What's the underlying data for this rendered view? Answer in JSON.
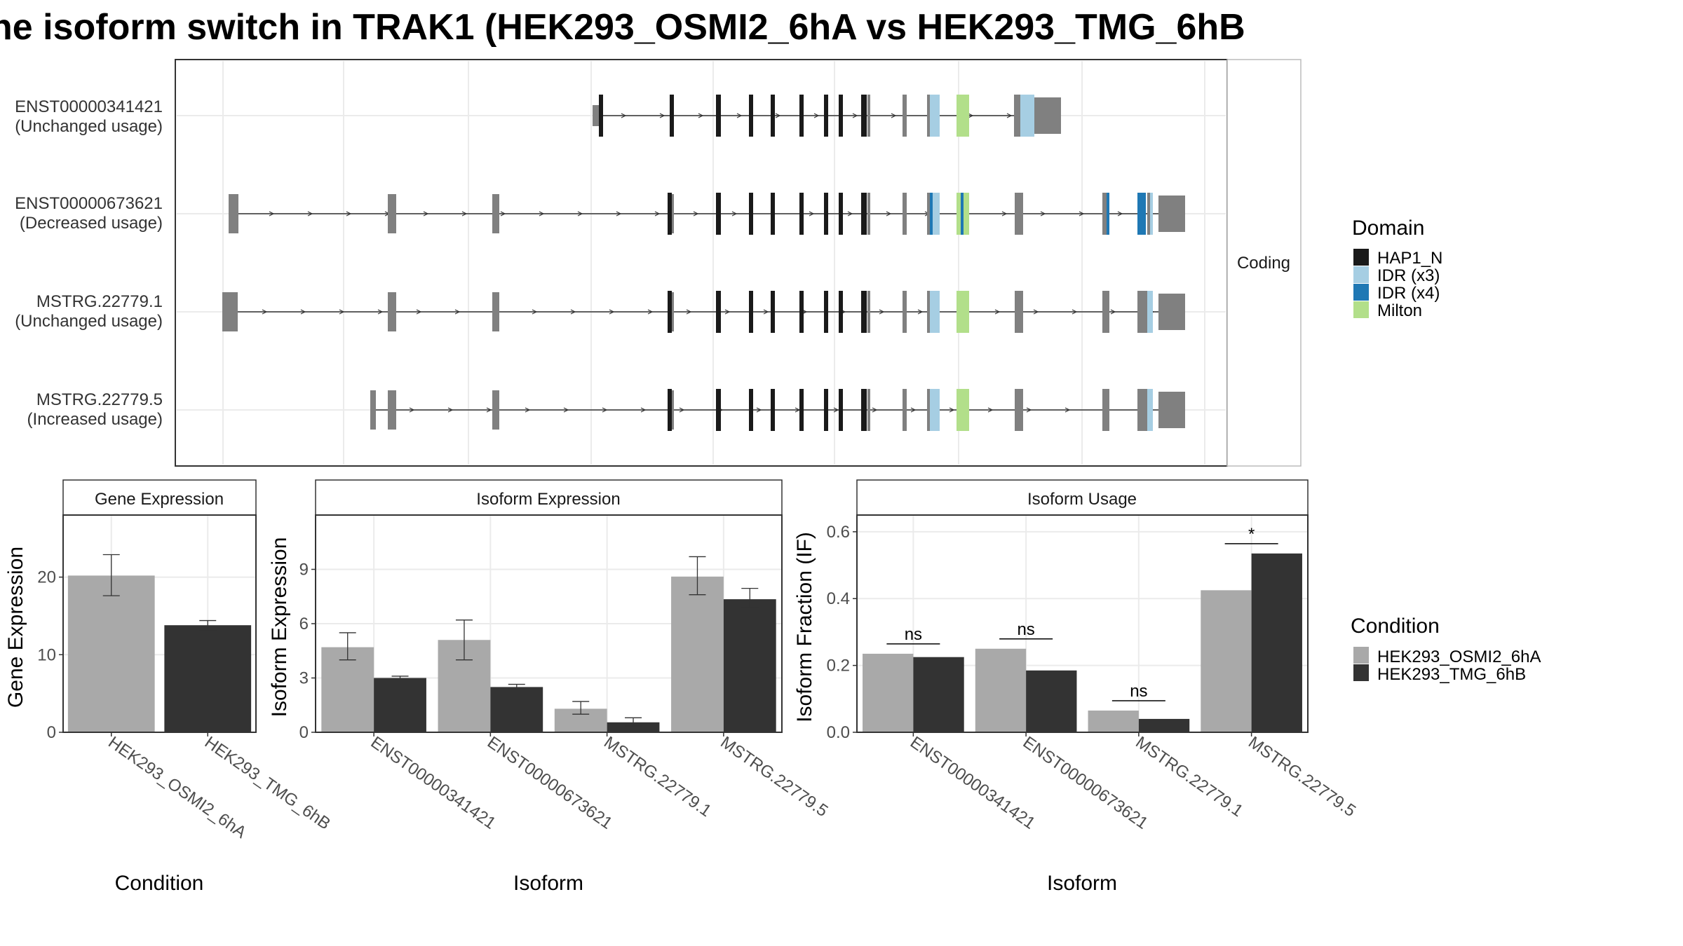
{
  "title": "he isoform switch in TRAK1 (HEK293_OSMI2_6hA vs HEK293_TMG_6hB",
  "colors": {
    "condition_a": "#a9a9a9",
    "condition_b": "#333333",
    "utr": "#808080",
    "domains": {
      "HAP1_N": "#1a1a1a",
      "IDR (x3)": "#a6cee3",
      "IDR (x4)": "#1f78b4",
      "Milton": "#b2df8a"
    }
  },
  "structure": {
    "strip_label": "Coding",
    "transcripts": [
      {
        "id": "ENST00000341421",
        "usage": "(Unchanged usage)"
      },
      {
        "id": "ENST00000673621",
        "usage": "(Decreased usage)"
      },
      {
        "id": "MSTRG.22779.1",
        "usage": "(Unchanged usage)"
      },
      {
        "id": "MSTRG.22779.5",
        "usage": "(Increased usage)"
      }
    ],
    "legend_title": "Domain",
    "legend_items": [
      "HAP1_N",
      "IDR (x3)",
      "IDR (x4)",
      "Milton"
    ]
  },
  "condition_legend": {
    "title": "Condition",
    "items": [
      "HEK293_OSMI2_6hA",
      "HEK293_TMG_6hB"
    ]
  },
  "chart_data": [
    {
      "type": "bar",
      "title": "Gene Expression",
      "xlabel": "Condition",
      "ylabel": "Gene Expression",
      "categories": [
        "HEK293_OSMI2_6hA",
        "HEK293_TMG_6hB"
      ],
      "values": [
        20.2,
        13.8
      ],
      "errors": [
        [
          17.6,
          22.9
        ],
        [
          13.1,
          14.4
        ]
      ],
      "ylim": [
        0,
        28
      ],
      "yticks": [
        0,
        10,
        20
      ]
    },
    {
      "type": "bar",
      "title": "Isoform Expression",
      "xlabel": "Isoform",
      "ylabel": "Isoform Expression",
      "categories": [
        "ENST00000341421",
        "ENST00000673621",
        "MSTRG.22779.1",
        "MSTRG.22779.5"
      ],
      "series": [
        {
          "name": "HEK293_OSMI2_6hA",
          "values": [
            4.7,
            5.1,
            1.3,
            8.6
          ],
          "errors": [
            [
              4.0,
              5.5
            ],
            [
              4.0,
              6.2
            ],
            [
              1.0,
              1.7
            ],
            [
              7.6,
              9.7
            ]
          ]
        },
        {
          "name": "HEK293_TMG_6hB",
          "values": [
            3.0,
            2.5,
            0.55,
            7.35
          ],
          "errors": [
            [
              2.95,
              3.1
            ],
            [
              2.4,
              2.65
            ],
            [
              0.35,
              0.8
            ],
            [
              6.9,
              7.95
            ]
          ]
        }
      ],
      "ylim": [
        0,
        12
      ],
      "yticks": [
        0,
        3,
        6,
        9
      ]
    },
    {
      "type": "bar",
      "title": "Isoform Usage",
      "xlabel": "Isoform",
      "ylabel": "Isoform Fraction (IF)",
      "categories": [
        "ENST00000341421",
        "ENST00000673621",
        "MSTRG.22779.1",
        "MSTRG.22779.5"
      ],
      "series": [
        {
          "name": "HEK293_OSMI2_6hA",
          "values": [
            0.235,
            0.25,
            0.065,
            0.425
          ]
        },
        {
          "name": "HEK293_TMG_6hB",
          "values": [
            0.225,
            0.185,
            0.04,
            0.535
          ]
        }
      ],
      "significance": [
        "ns",
        "ns",
        "ns",
        "*"
      ],
      "ylim": [
        0,
        0.65
      ],
      "yticks": [
        "0.0",
        "0.2",
        "0.4",
        "0.6"
      ]
    }
  ]
}
